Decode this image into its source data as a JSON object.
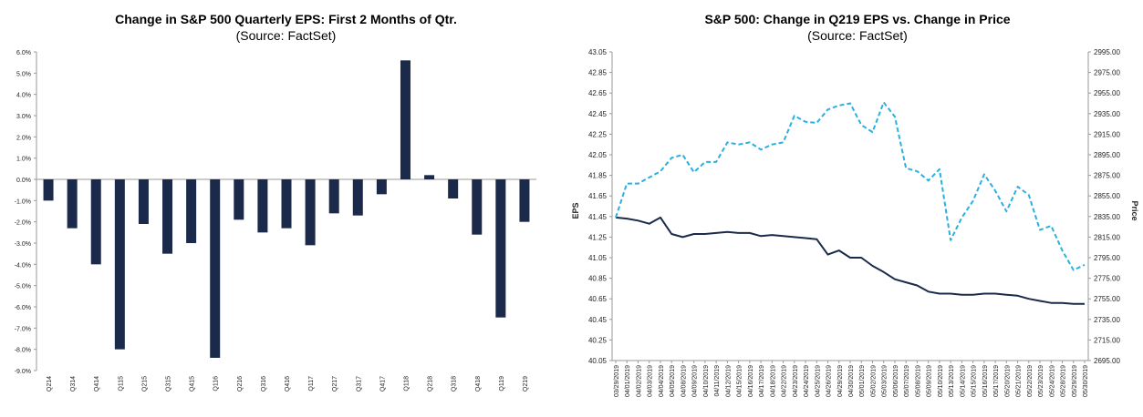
{
  "chart_data": [
    {
      "type": "bar",
      "title": "Change in S&P 500 Quarterly EPS: First 2 Months of Qtr.",
      "subtitle": "(Source: FactSet)",
      "categories": [
        "Q214",
        "Q314",
        "Q414",
        "Q115",
        "Q215",
        "Q315",
        "Q415",
        "Q116",
        "Q216",
        "Q316",
        "Q416",
        "Q117",
        "Q217",
        "Q317",
        "Q417",
        "Q118",
        "Q218",
        "Q318",
        "Q418",
        "Q119",
        "Q219"
      ],
      "values": [
        -1.0,
        -2.3,
        -4.0,
        -8.0,
        -2.1,
        -3.5,
        -3.0,
        -8.4,
        -1.9,
        -2.5,
        -2.3,
        -3.1,
        -1.6,
        -1.7,
        -0.7,
        5.6,
        0.2,
        -0.9,
        -2.6,
        -6.5,
        -2.0
      ],
      "yticks": [
        "6.0%",
        "5.0%",
        "4.0%",
        "3.0%",
        "2.0%",
        "1.0%",
        "0.0%",
        "-1.0%",
        "-2.0%",
        "-3.0%",
        "-4.0%",
        "-5.0%",
        "-6.0%",
        "-7.0%",
        "-8.0%",
        "-9.0%"
      ],
      "ylim": [
        -9,
        6
      ],
      "bar_color": "#1b2a4a"
    },
    {
      "type": "line",
      "title": "S&P 500: Change in Q219 EPS vs. Change in Price",
      "subtitle": "(Source: FactSet)",
      "ylabel": "EPS",
      "y2label": "Price",
      "x": [
        "03/29/2019",
        "04/01/2019",
        "04/02/2019",
        "04/03/2019",
        "04/04/2019",
        "04/05/2019",
        "04/08/2019",
        "04/09/2019",
        "04/10/2019",
        "04/11/2019",
        "04/12/2019",
        "04/15/2019",
        "04/16/2019",
        "04/17/2019",
        "04/18/2019",
        "04/22/2019",
        "04/23/2019",
        "04/24/2019",
        "04/25/2019",
        "04/26/2019",
        "04/29/2019",
        "04/30/2019",
        "05/01/2019",
        "05/02/2019",
        "05/03/2019",
        "05/06/2019",
        "05/07/2019",
        "05/08/2019",
        "05/09/2019",
        "05/10/2019",
        "05/13/2019",
        "05/14/2019",
        "05/15/2019",
        "05/16/2019",
        "05/17/2019",
        "05/20/2019",
        "05/21/2019",
        "05/22/2019",
        "05/23/2019",
        "05/24/2019",
        "05/28/2019",
        "05/29/2019",
        "05/30/2019"
      ],
      "yticks": [
        "43.05",
        "42.85",
        "42.65",
        "42.45",
        "42.25",
        "42.05",
        "41.85",
        "41.65",
        "41.45",
        "41.25",
        "41.05",
        "40.85",
        "40.65",
        "40.45",
        "40.25",
        "40.05"
      ],
      "y2ticks": [
        "2995.00",
        "2975.00",
        "2955.00",
        "2935.00",
        "2915.00",
        "2895.00",
        "2875.00",
        "2855.00",
        "2835.00",
        "2815.00",
        "2795.00",
        "2775.00",
        "2755.00",
        "2735.00",
        "2715.00",
        "2695.00"
      ],
      "ylim": [
        40.05,
        43.05
      ],
      "y2lim": [
        2695,
        2995
      ],
      "series": [
        {
          "axis": "left",
          "color": "#1b2a4a",
          "dash": false,
          "values": [
            41.44,
            41.43,
            41.41,
            41.38,
            41.44,
            41.28,
            41.25,
            41.28,
            41.28,
            41.29,
            41.3,
            41.29,
            41.29,
            41.26,
            41.27,
            41.26,
            41.25,
            41.24,
            41.23,
            41.08,
            41.12,
            41.05,
            41.05,
            40.97,
            40.91,
            40.84,
            40.81,
            40.78,
            40.72,
            40.7,
            40.7,
            40.69,
            40.69,
            40.7,
            40.7,
            40.69,
            40.68,
            40.65,
            40.63,
            40.61,
            40.61,
            40.6,
            40.6
          ]
        },
        {
          "axis": "right",
          "color": "#2ab0e0",
          "dash": true,
          "values": [
            2834,
            2867,
            2867,
            2873,
            2879,
            2892,
            2895,
            2878,
            2888,
            2888,
            2907,
            2905,
            2907,
            2900,
            2905,
            2907,
            2933,
            2927,
            2926,
            2939,
            2943,
            2945,
            2924,
            2917,
            2946,
            2932,
            2882,
            2879,
            2870,
            2881,
            2812,
            2834,
            2850,
            2876,
            2860,
            2840,
            2864,
            2856,
            2822,
            2826,
            2802,
            2783,
            2788
          ]
        }
      ]
    }
  ]
}
